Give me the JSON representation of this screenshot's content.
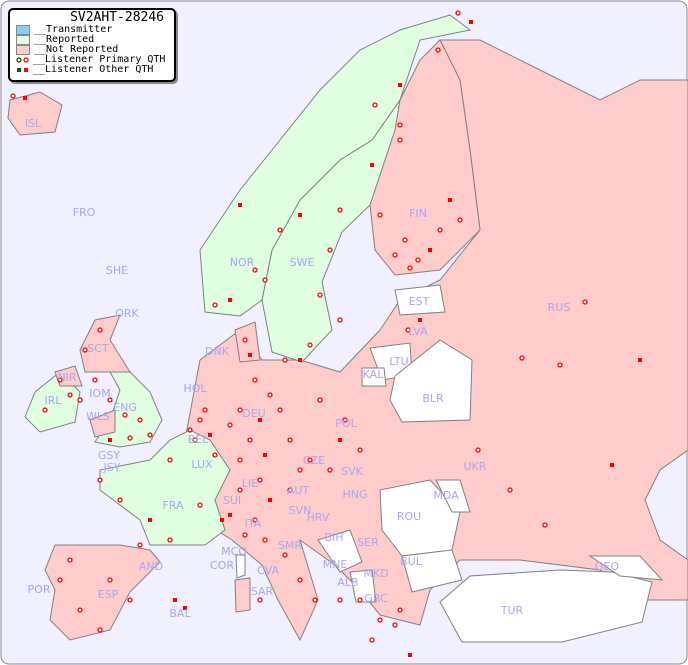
{
  "title": "SV2AHT-28246",
  "legend": {
    "items": [
      {
        "label": "__Transmitter",
        "color": "#87cefa"
      },
      {
        "label": "__Reported",
        "color": "#e0ffe0"
      },
      {
        "label": "__Not Reported",
        "color": "#ffcccc"
      },
      {
        "label": "__Listener Primary QTH",
        "marker": "circle",
        "colors": [
          "#006400",
          "#ff0000"
        ]
      },
      {
        "label": "__Listener Other QTH",
        "marker": "square",
        "colors": [
          "#006400",
          "#ff0000"
        ]
      }
    ]
  },
  "colors": {
    "sea": "#f0f0ff",
    "reported": "#e0ffe0",
    "not_reported": "#ffcccc",
    "no_data": "#ffffff",
    "border": "#808080",
    "label": "#a7a7f0",
    "marker": "#ff0000"
  },
  "countries": {
    "ISL": "ISL",
    "FRO": "FRO",
    "SHE": "SHE",
    "ORK": "ORK",
    "NOR": "NOR",
    "SWE": "SWE",
    "FIN": "FIN",
    "EST": "EST",
    "LVA": "LVA",
    "RUS": "RUS",
    "DNK": "DNK",
    "LTU": "LTU",
    "KAL": "KAL",
    "BLR": "BLR",
    "HOL": "HOL",
    "SCT": "SCT",
    "NIR": "NIR",
    "IOM": "IOM",
    "IRL": "IRL",
    "WLS": "WLS",
    "ENG": "ENG",
    "DEU": "DEU",
    "POL": "POL",
    "BEL": "BEL",
    "GSY": "GSY",
    "JSY": "JSY",
    "LUX": "LUX",
    "CZE": "CZE",
    "SVK": "SVK",
    "UKR": "UKR",
    "MDA": "MDA",
    "FRA": "FRA",
    "LIE": "LIE",
    "AUT": "AUT",
    "HNG": "HNG",
    "SUI": "SUI",
    "SVN": "SVN",
    "HRV": "HRV",
    "ROU": "ROU",
    "ITA": "ITA",
    "BIH": "BIH",
    "SER": "SER",
    "MCO": "MCO",
    "SMR": "SMR",
    "COR": "COR",
    "CVA": "CVA",
    "MNE": "MNE",
    "BUL": "BUL",
    "GEO": "GEO",
    "AND": "AND",
    "ALB": "ALB",
    "MKD": "MKD",
    "POR": "POR",
    "ESP": "ESP",
    "SAR": "SAR",
    "GRC": "GRC",
    "BAL": "BAL",
    "TUR": "TUR"
  }
}
